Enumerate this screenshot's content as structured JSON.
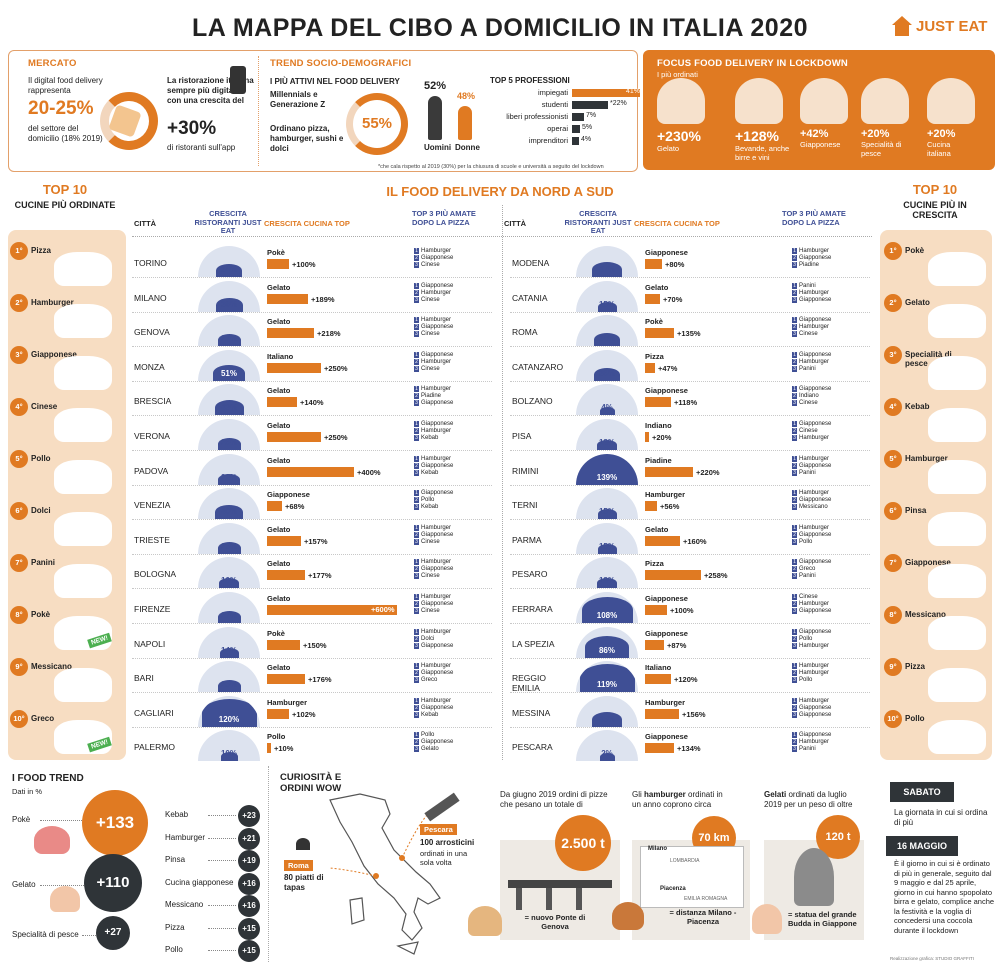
{
  "title": "LA MAPPA DEL CIBO A DOMICILIO IN ITALIA 2020",
  "logo": "JUST EAT",
  "mercato": {
    "heading": "MERCATO",
    "text1": "Il digital food delivery rappresenta",
    "value1": "20-25%",
    "text2": "del settore del domicilio (18% 2019)",
    "text3": "La ristorazione italiana sempre più digitale con una crescita del",
    "value2": "+30%",
    "text4": "di ristoranti sull'app"
  },
  "trend": {
    "heading": "TREND SOCIO-DEMOGRAFICI",
    "subheading": "I PIÙ ATTIVI NEL FOOD DELIVERY",
    "gen": "Millennials e Generazione Z",
    "order": "Ordinano pizza, hamburger, sushi e dolci",
    "pct": "55%",
    "men_pct": "52%",
    "women_pct": "48%",
    "men": "Uomini",
    "women": "Donne",
    "prof_title": "TOP 5 PROFESSIONI",
    "professions": [
      {
        "label": "impiegati",
        "value": 41,
        "text": "41%"
      },
      {
        "label": "studenti",
        "value": 22,
        "text": "*22%"
      },
      {
        "label": "liberi professionisti",
        "value": 7,
        "text": "7%"
      },
      {
        "label": "operai",
        "value": 5,
        "text": "5%"
      },
      {
        "label": "imprenditori",
        "value": 4,
        "text": "4%"
      }
    ],
    "footnote": "*che cala rispetto al 2019 (30%) per la chiusura di scuole e università a seguito del lockdown"
  },
  "lockdown": {
    "heading": "FOCUS FOOD DELIVERY IN LOCKDOWN",
    "sub": "I più ordinati",
    "items": [
      {
        "pct": "+230%",
        "label": "Gelato"
      },
      {
        "pct": "+128%",
        "label": "Bevande, anche birre e vini"
      },
      {
        "pct": "+42%",
        "label": "Giapponese"
      },
      {
        "pct": "+20%",
        "label": "Specialità di pesce"
      },
      {
        "pct": "+20%",
        "label": "Cucina italiana"
      }
    ]
  },
  "section_title": "IL FOOD DELIVERY DA NORD A SUD",
  "left_top": {
    "title1": "TOP 10",
    "title2": "CUCINE PIÙ ORDINATE",
    "items": [
      {
        "rank": "1°",
        "label": "Pizza"
      },
      {
        "rank": "2°",
        "label": "Hamburger"
      },
      {
        "rank": "3°",
        "label": "Giapponese"
      },
      {
        "rank": "4°",
        "label": "Cinese"
      },
      {
        "rank": "5°",
        "label": "Pollo"
      },
      {
        "rank": "6°",
        "label": "Dolci"
      },
      {
        "rank": "7°",
        "label": "Panini"
      },
      {
        "rank": "8°",
        "label": "Pokè",
        "badge": "NEW!"
      },
      {
        "rank": "9°",
        "label": "Messicano"
      },
      {
        "rank": "10°",
        "label": "Greco",
        "badge": "NEW!"
      }
    ]
  },
  "right_top": {
    "title1": "TOP 10",
    "title2": "CUCINE PIÙ IN CRESCITA",
    "items": [
      {
        "rank": "1°",
        "label": "Pokè"
      },
      {
        "rank": "2°",
        "label": "Gelato"
      },
      {
        "rank": "3°",
        "label": "Specialità di pesce"
      },
      {
        "rank": "4°",
        "label": "Kebab"
      },
      {
        "rank": "5°",
        "label": "Hamburger"
      },
      {
        "rank": "6°",
        "label": "Pinsa"
      },
      {
        "rank": "7°",
        "label": "Giapponese"
      },
      {
        "rank": "8°",
        "label": "Messicano"
      },
      {
        "rank": "9°",
        "label": "Pizza"
      },
      {
        "rank": "10°",
        "label": "Pollo"
      }
    ]
  },
  "table_headers": {
    "city": "CITTÀ",
    "growth": "CRESCITA RISTORANTI JUST EAT",
    "cuisine": "CRESCITA CUCINA TOP",
    "top3": "TOP 3 PIÙ AMATE DOPO LA PIZZA"
  },
  "chart_data": [
    {
      "type": "table",
      "title": "IL FOOD DELIVERY DA NORD A SUD",
      "columns": [
        "CITTÀ",
        "CRESCITA RISTORANTI JUST EAT",
        "CRESCITA CUCINA TOP",
        "TOP 3 PIÙ AMATE DOPO LA PIZZA"
      ],
      "rows_left": [
        {
          "city": "TORINO",
          "growth": 34,
          "cuisine": "Pokè",
          "cuisine_growth": 100,
          "top3": [
            "Hamburger",
            "Giapponese",
            "Cinese"
          ]
        },
        {
          "city": "MILANO",
          "growth": 39,
          "cuisine": "Gelato",
          "cuisine_growth": 189,
          "top3": [
            "Giapponese",
            "Hamburger",
            "Cinese"
          ]
        },
        {
          "city": "GENOVA",
          "growth": 27,
          "cuisine": "Gelato",
          "cuisine_growth": 218,
          "top3": [
            "Hamburger",
            "Giapponese",
            "Cinese"
          ]
        },
        {
          "city": "MONZA",
          "growth": 51,
          "cuisine": "Italiano",
          "cuisine_growth": 250,
          "top3": [
            "Giapponese",
            "Hamburger",
            "Cinese"
          ]
        },
        {
          "city": "BRESCIA",
          "growth": 43,
          "cuisine": "Gelato",
          "cuisine_growth": 140,
          "top3": [
            "Hamburger",
            "Piadine",
            "Giapponese"
          ]
        },
        {
          "city": "VERONA",
          "growth": 26,
          "cuisine": "Gelato",
          "cuisine_growth": 250,
          "top3": [
            "Giapponese",
            "Hamburger",
            "Kebab"
          ]
        },
        {
          "city": "PADOVA",
          "growth": 22,
          "cuisine": "Gelato",
          "cuisine_growth": 400,
          "top3": [
            "Hamburger",
            "Giapponese",
            "Kebab"
          ]
        },
        {
          "city": "VENEZIA",
          "growth": 40,
          "cuisine": "Giapponese",
          "cuisine_growth": 68,
          "top3": [
            "Giapponese",
            "Pollo",
            "Kebab"
          ]
        },
        {
          "city": "TRIESTE",
          "growth": 25,
          "cuisine": "Gelato",
          "cuisine_growth": 157,
          "top3": [
            "Hamburger",
            "Giapponese",
            "Cinese"
          ]
        },
        {
          "city": "BOLOGNA",
          "growth": 16,
          "cuisine": "Gelato",
          "cuisine_growth": 177,
          "top3": [
            "Hamburger",
            "Giapponese",
            "Cinese"
          ]
        },
        {
          "city": "FIRENZE",
          "growth": 27,
          "cuisine": "Gelato",
          "cuisine_growth": 600,
          "top3": [
            "Hamburger",
            "Giapponese",
            "Cinese"
          ]
        },
        {
          "city": "NAPOLI",
          "growth": 14,
          "cuisine": "Pokè",
          "cuisine_growth": 150,
          "top3": [
            "Hamburger",
            "Dolci",
            "Giapponese"
          ]
        },
        {
          "city": "BARI",
          "growth": 25,
          "cuisine": "Gelato",
          "cuisine_growth": 176,
          "top3": [
            "Hamburger",
            "Giapponese",
            "Greco"
          ]
        },
        {
          "city": "CAGLIARI",
          "growth": 120,
          "cuisine": "Hamburger",
          "cuisine_growth": 102,
          "top3": [
            "Hamburger",
            "Giapponese",
            "Kebab"
          ]
        },
        {
          "city": "PALERMO",
          "growth": 10,
          "cuisine": "Pollo",
          "cuisine_growth": 10,
          "top3": [
            "Pollo",
            "Giapponese",
            "Gelato"
          ]
        }
      ],
      "rows_right": [
        {
          "city": "MODENA",
          "growth": 47,
          "cuisine": "Giapponese",
          "cuisine_growth": 80,
          "top3": [
            "Hamburger",
            "Giapponese",
            "Piadine"
          ]
        },
        {
          "city": "CATANIA",
          "growth": 15,
          "cuisine": "Gelato",
          "cuisine_growth": 70,
          "top3": [
            "Panini",
            "Hamburger",
            "Giapponese"
          ]
        },
        {
          "city": "ROMA",
          "growth": 34,
          "cuisine": "Pokè",
          "cuisine_growth": 135,
          "top3": [
            "Giapponese",
            "Hamburger",
            "Cinese"
          ]
        },
        {
          "city": "CATANZARO",
          "growth": 36,
          "cuisine": "Pizza",
          "cuisine_growth": 47,
          "top3": [
            "Giapponese",
            "Hamburger",
            "Panini"
          ]
        },
        {
          "city": "BOLZANO",
          "growth": 4,
          "cuisine": "Giapponese",
          "cuisine_growth": 118,
          "top3": [
            "Giapponese",
            "Indiano",
            "Cinese"
          ]
        },
        {
          "city": "PISA",
          "growth": 18,
          "cuisine": "Indiano",
          "cuisine_growth": 20,
          "top3": [
            "Giapponese",
            "Cinese",
            "Hamburger"
          ]
        },
        {
          "city": "RIMINI",
          "growth": 139,
          "cuisine": "Piadine",
          "cuisine_growth": 220,
          "top3": [
            "Hamburger",
            "Giapponese",
            "Panini"
          ]
        },
        {
          "city": "TERNI",
          "growth": 15,
          "cuisine": "Hamburger",
          "cuisine_growth": 56,
          "top3": [
            "Hamburger",
            "Giapponese",
            "Messicano"
          ]
        },
        {
          "city": "PARMA",
          "growth": 15,
          "cuisine": "Gelato",
          "cuisine_growth": 160,
          "top3": [
            "Hamburger",
            "Giapponese",
            "Pollo"
          ]
        },
        {
          "city": "PESARO",
          "growth": 18,
          "cuisine": "Pizza",
          "cuisine_growth": 258,
          "top3": [
            "Giapponese",
            "Greco",
            "Panini"
          ]
        },
        {
          "city": "FERRARA",
          "growth": 108,
          "cuisine": "Giapponese",
          "cuisine_growth": 100,
          "top3": [
            "Cinese",
            "Hamburger",
            "Giapponese"
          ]
        },
        {
          "city": "LA SPEZIA",
          "growth": 86,
          "cuisine": "Giapponese",
          "cuisine_growth": 87,
          "top3": [
            "Giapponese",
            "Pollo",
            "Hamburger"
          ]
        },
        {
          "city": "REGGIO EMILIA",
          "growth": 119,
          "cuisine": "Italiano",
          "cuisine_growth": 120,
          "top3": [
            "Hamburger",
            "Hamburger",
            "Pollo"
          ]
        },
        {
          "city": "MESSINA",
          "growth": 45,
          "cuisine": "Hamburger",
          "cuisine_growth": 156,
          "top3": [
            "Hamburger",
            "Giapponese",
            "Giapponese"
          ]
        },
        {
          "city": "PESCARA",
          "growth": 2,
          "cuisine": "Giapponese",
          "cuisine_growth": 134,
          "top3": [
            "Giapponese",
            "Hamburger",
            "Panini"
          ]
        }
      ]
    },
    {
      "type": "bar",
      "title": "I FOOD TREND",
      "subtitle": "Dati in %",
      "categories": [
        "Pokè",
        "Gelato",
        "Specialità di pesce",
        "Kebab",
        "Hamburger",
        "Pinsa",
        "Cucina giapponese",
        "Messicano",
        "Pizza",
        "Pollo"
      ],
      "values": [
        133,
        110,
        27,
        23,
        21,
        19,
        16,
        16,
        15,
        15
      ]
    }
  ],
  "food_trend_labels": {
    "title": "I FOOD TREND",
    "sub": "Dati in %"
  },
  "curiosita": {
    "title": "CURIOSITÀ E ORDINI WOW",
    "pescara": "Pescara",
    "pescara_text": "100 arrosticini",
    "pescara_text2": "ordinati in una sola volta",
    "roma": "Roma",
    "roma_text": "80 piatti di tapas",
    "pizza_intro": "Da giugno 2019 ordini di pizze che pesano un totale di",
    "pizza_value": "2.500 t",
    "pizza_eq": "= nuovo Ponte di Genova",
    "burger_intro1": "Gli ",
    "burger_intro_bold": "hamburger",
    "burger_intro2": " ordinati in un anno coprono circa",
    "burger_value": "70 km",
    "burger_eq": "= distanza Milano - Piacenza",
    "map_milano": "Milano",
    "map_lombardia": "LOMBARDIA",
    "map_piacenza": "Piacenza",
    "map_emilia": "EMILIA ROMAGNA",
    "gelato_intro_bold": "Gelati",
    "gelato_intro": " ordinati da luglio 2019 per un peso di oltre",
    "gelato_value": "120 t",
    "gelato_eq": "= statua del grande Budda in Giappone"
  },
  "dates": {
    "sabato": "SABATO",
    "sabato_text": "La giornata in cui si ordina di più",
    "maggio": "16 MAGGIO",
    "maggio_text": "È il giorno in cui si è ordinato di più in generale, seguito dal 9 maggio e dal 25 aprile, giorno in cui hanno spopolato birra e gelato, complice anche la festività e la voglia di concedersi una coccola durante il lockdown"
  },
  "credits": "Realizzazione grafica: STUDIO GRAFFITI"
}
